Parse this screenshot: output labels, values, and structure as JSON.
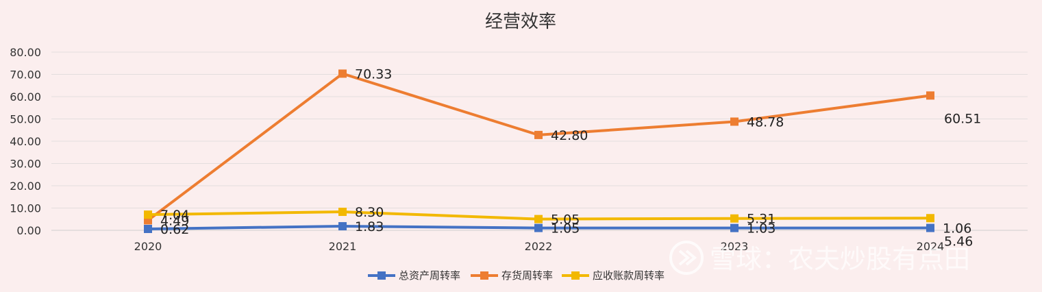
{
  "chart_data": {
    "type": "line",
    "title": "经营效率",
    "categories": [
      "2020",
      "2021",
      "2022",
      "2023",
      "2024"
    ],
    "ylim": [
      0,
      80
    ],
    "yticks": [
      "0.00",
      "10.00",
      "20.00",
      "30.00",
      "40.00",
      "50.00",
      "60.00",
      "70.00",
      "80.00"
    ],
    "grid": true,
    "legend_position": "bottom",
    "series": [
      {
        "name": "总资产周转率",
        "color": "#4472c4",
        "values": [
          0.62,
          1.83,
          1.05,
          1.03,
          1.06
        ],
        "labels": [
          "0.62",
          "1.83",
          "1.05",
          "1.03",
          "1.06"
        ]
      },
      {
        "name": "存货周转率",
        "color": "#ed7d31",
        "values": [
          4.49,
          70.33,
          42.8,
          48.78,
          60.51
        ],
        "labels": [
          "4.49",
          "70.33",
          "42.80",
          "48.78",
          "60.51"
        ]
      },
      {
        "name": "应收账款周转率",
        "color": "#f2b800",
        "values": [
          7.04,
          8.3,
          5.05,
          5.31,
          5.46
        ],
        "labels": [
          "7.04",
          "8.30",
          "5.05",
          "5.31",
          "5.46"
        ]
      }
    ]
  },
  "watermark": {
    "text": "雪球：农夫炒股有点田"
  }
}
